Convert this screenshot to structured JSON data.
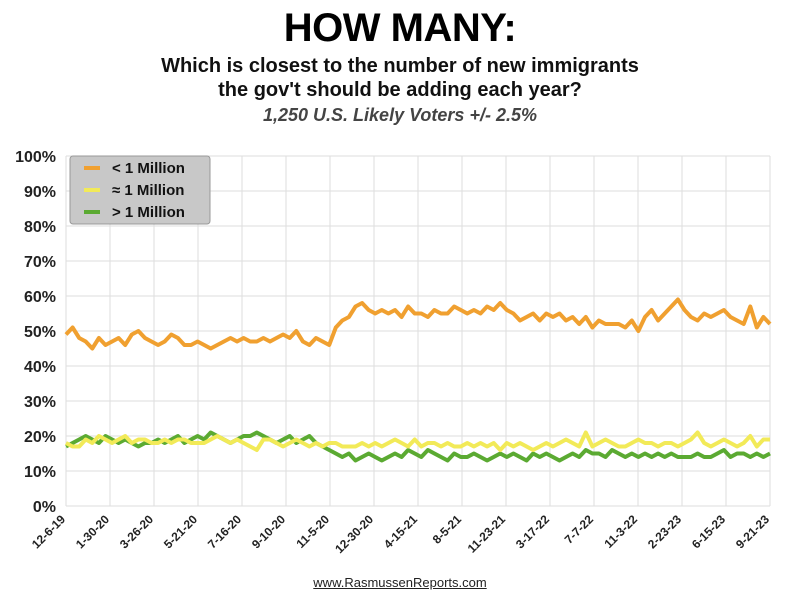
{
  "header": {
    "title": "HOW MANY:",
    "subtitle_line1": "Which is closest to the number of new immigrants",
    "subtitle_line2": "the gov't should be adding each year?",
    "sample": "1,250 U.S. Likely Voters +/- 2.5%"
  },
  "footer": {
    "source": "www.RasmussenReports.com"
  },
  "colors": {
    "less": "#F0A030",
    "about": "#F2EA58",
    "more": "#5BAA32",
    "grid": "#dddddd"
  },
  "chart_data": {
    "type": "line",
    "title": "HOW MANY:",
    "ylim": [
      0,
      100
    ],
    "y_ticks": [
      "0%",
      "10%",
      "20%",
      "30%",
      "40%",
      "50%",
      "60%",
      "70%",
      "80%",
      "90%",
      "100%"
    ],
    "x_tick_labels": [
      "12-6-19",
      "1-30-20",
      "3-26-20",
      "5-21-20",
      "7-16-20",
      "9-10-20",
      "11-5-20",
      "12-30-20",
      "4-15-21",
      "8-5-21",
      "11-23-21",
      "3-17-22",
      "7-7-22",
      "11-3-22",
      "2-23-23",
      "6-15-23",
      "9-21-23"
    ],
    "grid": true,
    "legend_placement": "top-left",
    "series": [
      {
        "name": "< 1 Million",
        "values": [
          49,
          51,
          48,
          47,
          45,
          48,
          46,
          47,
          48,
          46,
          49,
          50,
          48,
          47,
          46,
          47,
          49,
          48,
          46,
          46,
          47,
          46,
          45,
          46,
          47,
          48,
          47,
          48,
          47,
          47,
          48,
          47,
          48,
          49,
          48,
          50,
          47,
          46,
          48,
          47,
          46,
          51,
          53,
          54,
          57,
          58,
          56,
          55,
          56,
          55,
          56,
          54,
          57,
          55,
          55,
          54,
          56,
          55,
          55,
          57,
          56,
          55,
          56,
          55,
          57,
          56,
          58,
          56,
          55,
          53,
          54,
          55,
          53,
          55,
          54,
          55,
          53,
          54,
          52,
          54,
          51,
          53,
          52,
          52,
          52,
          51,
          53,
          50,
          54,
          56,
          53,
          55,
          57,
          59,
          56,
          54,
          53,
          55,
          54,
          55,
          56,
          54,
          53,
          52,
          57,
          51,
          54,
          52
        ]
      },
      {
        "name": "≈ 1 Million",
        "values": [
          18,
          17,
          17,
          19,
          18,
          20,
          19,
          18,
          19,
          20,
          18,
          19,
          19,
          18,
          18,
          19,
          18,
          19,
          19,
          18,
          18,
          18,
          19,
          20,
          19,
          18,
          19,
          18,
          17,
          16,
          19,
          19,
          18,
          17,
          18,
          19,
          18,
          17,
          18,
          17,
          18,
          18,
          17,
          17,
          17,
          18,
          17,
          18,
          17,
          18,
          19,
          18,
          17,
          19,
          17,
          18,
          18,
          17,
          18,
          17,
          17,
          18,
          17,
          18,
          17,
          18,
          16,
          18,
          17,
          18,
          17,
          16,
          17,
          18,
          17,
          18,
          19,
          18,
          17,
          21,
          17,
          18,
          19,
          18,
          17,
          17,
          18,
          19,
          18,
          18,
          17,
          18,
          18,
          17,
          18,
          19,
          21,
          18,
          17,
          18,
          19,
          18,
          17,
          18,
          20,
          17,
          19,
          19
        ]
      },
      {
        "name": "> 1 Million",
        "values": [
          17,
          18,
          19,
          20,
          19,
          18,
          20,
          19,
          18,
          19,
          18,
          17,
          18,
          18,
          19,
          18,
          19,
          20,
          18,
          19,
          20,
          19,
          21,
          20,
          19,
          18,
          19,
          20,
          20,
          21,
          20,
          19,
          18,
          19,
          20,
          18,
          19,
          20,
          18,
          17,
          16,
          15,
          14,
          15,
          13,
          14,
          15,
          14,
          13,
          14,
          15,
          14,
          16,
          15,
          14,
          16,
          15,
          14,
          13,
          15,
          14,
          14,
          15,
          14,
          13,
          14,
          15,
          14,
          15,
          14,
          13,
          15,
          14,
          15,
          14,
          13,
          14,
          15,
          14,
          16,
          15,
          15,
          14,
          16,
          15,
          14,
          15,
          14,
          15,
          14,
          15,
          14,
          15,
          14,
          14,
          14,
          15,
          14,
          14,
          15,
          16,
          14,
          15,
          15,
          14,
          15,
          14,
          15
        ]
      }
    ]
  }
}
